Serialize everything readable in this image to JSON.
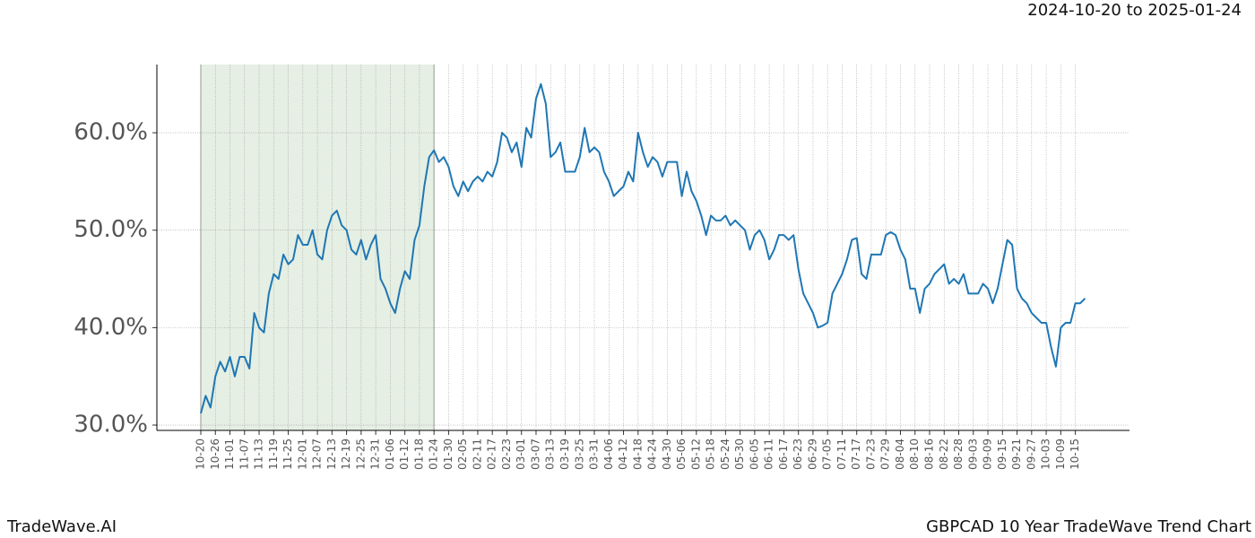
{
  "chart_data": {
    "type": "line",
    "header": "2024-10-20 to 2025-01-24",
    "footer_left": "TradeWave.AI",
    "footer_right": "GBPCAD 10 Year TradeWave Trend Chart",
    "categories": [
      "10-20",
      null,
      null,
      "10-26",
      null,
      null,
      "11-01",
      null,
      null,
      "11-07",
      null,
      null,
      "11-13",
      null,
      null,
      "11-19",
      null,
      null,
      "11-25",
      null,
      null,
      "12-01",
      null,
      null,
      "12-07",
      null,
      null,
      "12-13",
      null,
      null,
      "12-19",
      null,
      null,
      "12-25",
      null,
      null,
      "12-31",
      null,
      null,
      "01-06",
      null,
      null,
      "01-12",
      null,
      null,
      "01-18",
      null,
      null,
      "01-24",
      null,
      null,
      "01-30",
      null,
      null,
      "02-05",
      null,
      null,
      "02-11",
      null,
      null,
      "02-17",
      null,
      null,
      "02-23",
      null,
      null,
      "03-01",
      null,
      null,
      "03-07",
      null,
      null,
      "03-13",
      null,
      null,
      "03-19",
      null,
      null,
      "03-25",
      null,
      null,
      "03-31",
      null,
      null,
      "04-06",
      null,
      null,
      "04-12",
      null,
      null,
      "04-18",
      null,
      null,
      "04-24",
      null,
      null,
      "04-30",
      null,
      null,
      "05-06",
      null,
      null,
      "05-12",
      null,
      null,
      "05-18",
      null,
      null,
      "05-24",
      null,
      null,
      "05-30",
      null,
      null,
      "06-05",
      null,
      null,
      "06-11",
      null,
      null,
      "06-17",
      null,
      null,
      "06-23",
      null,
      null,
      "06-29",
      null,
      null,
      "07-05",
      null,
      null,
      "07-11",
      null,
      null,
      "07-17",
      null,
      null,
      "07-23",
      null,
      null,
      "07-29",
      null,
      null,
      "08-04",
      null,
      null,
      "08-10",
      null,
      null,
      "08-16",
      null,
      null,
      "08-22",
      null,
      null,
      "08-28",
      null,
      null,
      "09-03",
      null,
      null,
      "09-09",
      null,
      null,
      "09-15",
      null,
      null,
      "09-21",
      null,
      null,
      "09-27",
      null,
      null,
      "10-03",
      null,
      null,
      "10-09",
      null,
      null,
      "10-15",
      null,
      null
    ],
    "series": [
      {
        "color": "#1f77b4",
        "values": [
          31.2,
          33,
          31.8,
          35,
          36.5,
          35.5,
          37,
          35,
          37,
          37,
          35.8,
          41.5,
          40,
          39.5,
          43.5,
          45.5,
          45,
          47.5,
          46.5,
          47,
          49.5,
          48.5,
          48.5,
          50,
          47.5,
          47,
          50,
          51.5,
          52,
          50.5,
          50,
          48,
          47.5,
          49,
          47,
          48.5,
          49.5,
          45,
          44,
          42.5,
          41.5,
          44,
          45.8,
          45,
          49,
          50.5,
          54.5,
          57.5,
          58.2,
          57,
          57.5,
          56.5,
          54.5,
          53.5,
          55,
          54,
          55,
          55.5,
          55,
          56,
          55.5,
          57,
          60,
          59.5,
          58,
          59,
          56.5,
          60.5,
          59.5,
          63.5,
          65,
          63,
          57.5,
          58,
          59,
          56,
          56,
          56,
          57.5,
          60.5,
          58,
          58.5,
          58,
          56,
          55,
          53.5,
          54,
          54.5,
          56,
          55,
          60,
          58,
          56.5,
          57.5,
          57,
          55.5,
          57,
          57,
          57,
          53.5,
          56,
          54,
          53,
          51.5,
          49.5,
          51.5,
          51,
          51,
          51.5,
          50.5,
          51,
          50.5,
          50,
          48,
          49.5,
          50,
          49,
          47,
          48,
          49.5,
          49.5,
          49,
          49.5,
          46,
          43.5,
          42.5,
          41.5,
          40,
          40.2,
          40.5,
          43.5,
          44.5,
          45.5,
          47,
          49,
          49.2,
          45.5,
          45,
          47.5,
          47.5,
          47.5,
          49.5,
          49.8,
          49.5,
          48,
          47,
          44,
          44,
          41.5,
          44,
          44.5,
          45.5,
          46,
          46.5,
          44.5,
          45,
          44.5,
          45.5,
          43.5,
          43.5,
          43.5,
          44.5,
          44,
          42.5,
          44,
          46.5,
          49,
          48.5,
          44,
          43,
          42.5,
          41.5,
          41,
          40.5,
          40.5,
          38,
          36,
          40,
          40.5,
          40.5,
          42.5,
          42.5,
          43
        ]
      }
    ],
    "ylim": [
      29.45,
      67
    ],
    "yticks": [
      {
        "value": 30,
        "label": "30.0%"
      },
      {
        "value": 40,
        "label": "40.0%"
      },
      {
        "value": 50,
        "label": "50.0%"
      },
      {
        "value": 60,
        "label": "60.0%"
      }
    ],
    "grid": true,
    "highlight": {
      "from": "10-20",
      "to": "01-24",
      "color": "#e5efe3"
    }
  }
}
